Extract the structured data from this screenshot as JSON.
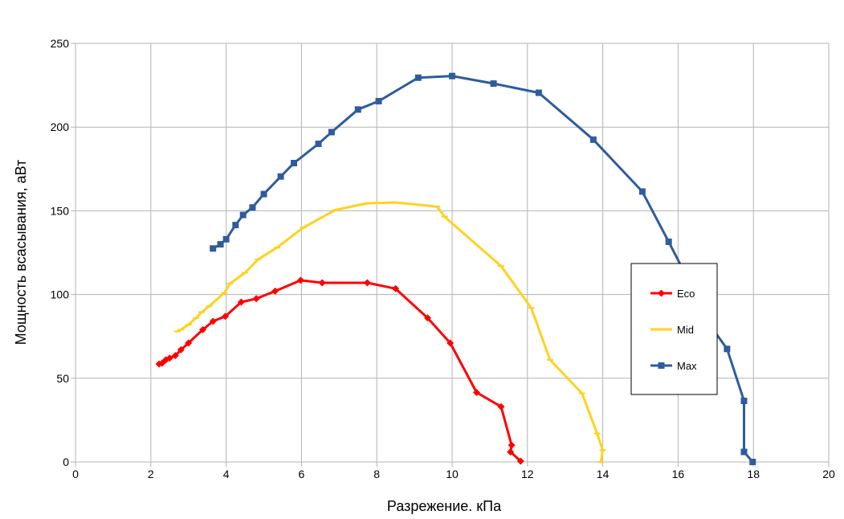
{
  "chart_data": {
    "type": "line",
    "title": "",
    "xlabel": "Разрежение. кПа",
    "ylabel": "Мощность всасывания, аВт",
    "xlim": [
      0,
      20
    ],
    "ylim": [
      0,
      250
    ],
    "xticks": [
      "0",
      "2",
      "4",
      "6",
      "8",
      "10",
      "12",
      "14",
      "16",
      "18",
      "20"
    ],
    "yticks": [
      "0",
      "50",
      "100",
      "150",
      "200",
      "250"
    ],
    "grid": true,
    "legend_position": "right",
    "series": [
      {
        "name": "Eco",
        "color": "#ff0000",
        "marker": "diamond",
        "points": [
          [
            2.22,
            58.5
          ],
          [
            2.3,
            59
          ],
          [
            2.4,
            61
          ],
          [
            2.5,
            62
          ],
          [
            2.65,
            63.5
          ],
          [
            2.8,
            67
          ],
          [
            3.0,
            71
          ],
          [
            3.38,
            79
          ],
          [
            3.65,
            84
          ],
          [
            3.98,
            87
          ],
          [
            4.4,
            95.5
          ],
          [
            4.8,
            97.5
          ],
          [
            5.3,
            102
          ],
          [
            5.98,
            108.5
          ],
          [
            6.55,
            107
          ],
          [
            7.75,
            107
          ],
          [
            8.5,
            103.5
          ],
          [
            9.35,
            86
          ],
          [
            9.95,
            71
          ],
          [
            10.65,
            41.5
          ],
          [
            11.3,
            33
          ],
          [
            11.58,
            10
          ],
          [
            11.55,
            6
          ],
          [
            11.82,
            0.5
          ]
        ]
      },
      {
        "name": "Mid",
        "color": "#ffd21e",
        "marker": "dash",
        "points": [
          [
            2.7,
            78
          ],
          [
            2.8,
            79
          ],
          [
            3.0,
            82
          ],
          [
            3.2,
            86
          ],
          [
            3.35,
            89.5
          ],
          [
            3.55,
            93
          ],
          [
            3.95,
            101
          ],
          [
            4.1,
            106.5
          ],
          [
            4.5,
            113
          ],
          [
            4.85,
            121
          ],
          [
            5.35,
            128
          ],
          [
            6.05,
            140
          ],
          [
            6.9,
            150.5
          ],
          [
            7.75,
            154.5
          ],
          [
            8.5,
            155
          ],
          [
            9.6,
            152.5
          ],
          [
            9.8,
            146.5
          ],
          [
            11.3,
            117
          ],
          [
            12.1,
            92
          ],
          [
            12.6,
            61
          ],
          [
            13.45,
            41
          ],
          [
            13.85,
            17
          ],
          [
            14.0,
            7
          ],
          [
            13.95,
            0
          ]
        ]
      },
      {
        "name": "Max",
        "color": "#2e5c9c",
        "marker": "square",
        "points": [
          [
            3.65,
            127.5
          ],
          [
            3.85,
            130
          ],
          [
            4.0,
            133
          ],
          [
            4.25,
            141.5
          ],
          [
            4.45,
            147.5
          ],
          [
            4.7,
            152
          ],
          [
            5.0,
            160
          ],
          [
            5.45,
            170.5
          ],
          [
            5.8,
            178.5
          ],
          [
            6.45,
            190
          ],
          [
            6.8,
            197
          ],
          [
            7.5,
            210.5
          ],
          [
            8.05,
            215.5
          ],
          [
            9.1,
            229.5
          ],
          [
            10.0,
            230.5
          ],
          [
            11.1,
            226
          ],
          [
            12.3,
            220.5
          ],
          [
            13.75,
            192.5
          ],
          [
            15.05,
            161.5
          ],
          [
            15.75,
            131.5
          ],
          [
            16.4,
            103
          ],
          [
            16.9,
            80
          ],
          [
            17.3,
            67.5
          ],
          [
            17.75,
            36.5
          ],
          [
            17.75,
            6
          ],
          [
            17.98,
            0
          ]
        ]
      }
    ]
  }
}
